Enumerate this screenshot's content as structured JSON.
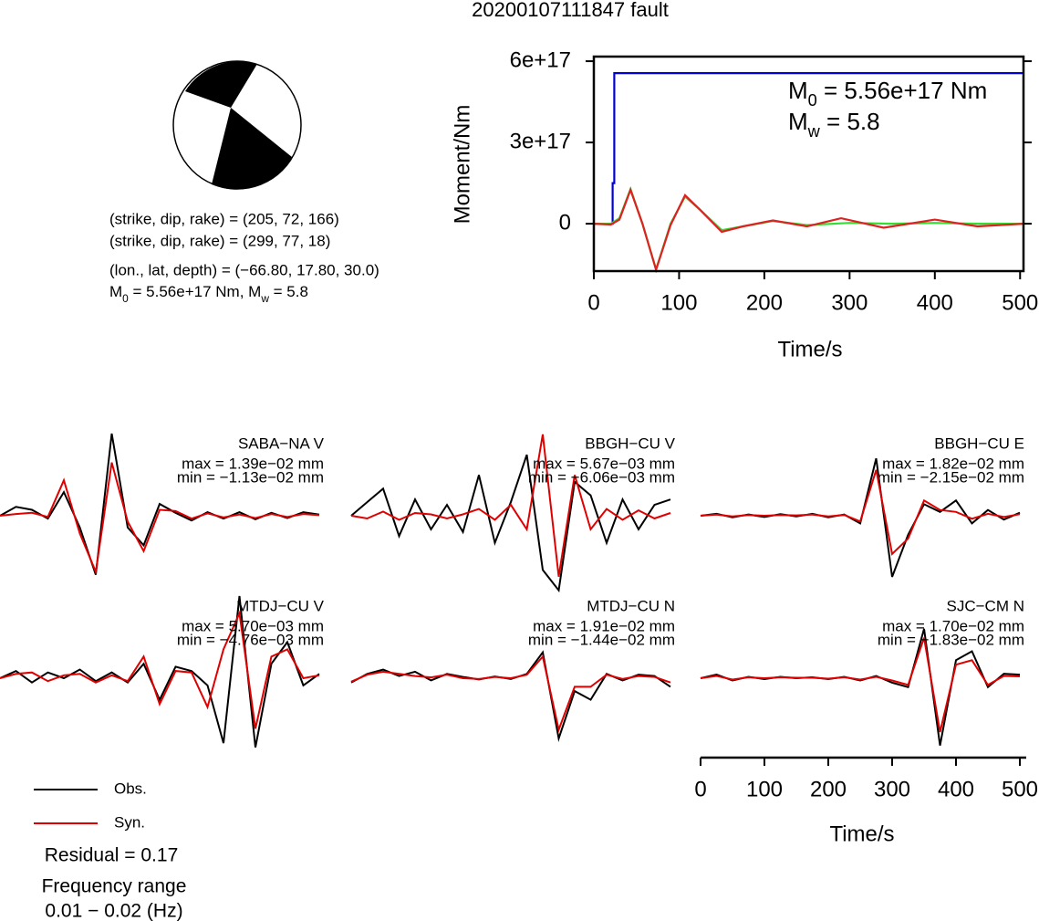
{
  "title": "20200107111847 fault",
  "mechanism": {
    "lines": [
      "(strike, dip, rake) = (205, 72, 166)",
      "(strike, dip, rake) = (299, 77, 18)",
      "(lon., lat, depth) = (−66.80, 17.80, 30.0)"
    ],
    "moment": [
      {
        "t": "M"
      },
      {
        "s": "0"
      },
      {
        "t": " = 5.56e+17 Nm, M"
      },
      {
        "s": "w"
      },
      {
        "t": " = 5.8"
      }
    ]
  },
  "residual": "Residual = 0.17",
  "frequency_range": [
    "Frequency range",
    "0.01 − 0.02 (Hz)"
  ],
  "chart_data": [
    {
      "type": "line",
      "xlabel": "Time/s",
      "ylabel": "Moment/Nm",
      "xlim": [
        0,
        504
      ],
      "ylim": [
        -1.75e+17,
        6.17e+17
      ],
      "xticks": [
        0,
        100,
        200,
        300,
        400,
        500
      ],
      "yticks": [
        {
          "value": 0,
          "label": "0"
        },
        {
          "value": 3e+17,
          "label": "3e+17"
        },
        {
          "value": 6e+17,
          "label": "6e+17"
        }
      ],
      "annotations": [
        [
          {
            "t": "M"
          },
          {
            "s": "0"
          },
          {
            "t": " = 5.56e+17 Nm"
          }
        ],
        [
          {
            "t": "M"
          },
          {
            "s": "w"
          },
          {
            "t": " = 5.8"
          }
        ]
      ],
      "series": [
        {
          "color": "#0000dd",
          "x": [
            0,
            22,
            22,
            24,
            24,
            504
          ],
          "values": [
            0,
            0,
            1.5e+17,
            1.5e+17,
            5.56e+17,
            5.56e+17
          ]
        },
        {
          "color": "#33dd33",
          "x": [
            0,
            20,
            30,
            43,
            57,
            73,
            90,
            107,
            125,
            150,
            175,
            210,
            250,
            300,
            350,
            400,
            450,
            504
          ],
          "values": [
            0,
            0,
            2e+16,
            1.28e+17,
            0,
            -1.69e+17,
            0,
            1e+17,
            5e+16,
            -2.4e+16,
            -1e+16,
            1e+16,
            -5000000000000000.0,
            3000000000000000.0,
            0,
            3000000000000000.0,
            0,
            0
          ]
        },
        {
          "color": "#dd2222",
          "x": [
            0,
            20,
            30,
            43,
            57,
            73,
            90,
            107,
            125,
            150,
            175,
            210,
            250,
            290,
            340,
            400,
            450,
            504
          ],
          "values": [
            0,
            -3000000000000000.0,
            1.5e+16,
            1.25e+17,
            0,
            -1.7e+17,
            -5000000000000000.0,
            1.05e+17,
            5e+16,
            -3e+16,
            -1e+16,
            1.2e+16,
            -1e+16,
            2e+16,
            -1.5e+16,
            1.5e+16,
            -1e+16,
            0
          ]
        }
      ]
    },
    {
      "type": "waveform",
      "xlabel": "Time/s",
      "xlim": [
        0,
        510
      ],
      "xticks": [
        0,
        100,
        200,
        300,
        400,
        500
      ],
      "x": [
        0,
        25,
        50,
        75,
        100,
        125,
        150,
        175,
        200,
        225,
        250,
        275,
        300,
        325,
        350,
        375,
        400,
        425,
        450,
        475,
        500
      ],
      "legend": [
        {
          "name": "Obs.",
          "color": "#000000"
        },
        {
          "name": "Syn.",
          "color": "#e00000"
        }
      ],
      "panels": [
        {
          "name": "SABA−NA V",
          "max_label": "max = 1.39e−02 mm",
          "min_label": "min = −1.13e−02 mm",
          "ylim": [
            -0.0139,
            0.0139
          ],
          "traces": [
            [
              0,
              0.0015,
              0.001,
              -0.0005,
              0.004,
              -0.002,
              -0.01,
              0.0139,
              -0.002,
              -0.005,
              0.002,
              0.0005,
              -0.0008,
              0.0006,
              -0.0005,
              0.0006,
              -0.0006,
              0.0005,
              -0.0004,
              0.0006,
              0.0002
            ],
            [
              0,
              0.0003,
              0.0005,
              -0.0002,
              0.006,
              -0.003,
              -0.0095,
              0.009,
              -0.001,
              -0.006,
              0.001,
              0.0008,
              -0.0005,
              0.0004,
              -0.0003,
              0.0002,
              -0.0004,
              0.0003,
              -0.0002,
              0.0003,
              0.0001
            ]
          ]
        },
        {
          "name": "BBGH−CU V",
          "max_label": "max = 5.67e−03 mm",
          "min_label": "min = −6.06e−03 mm",
          "ylim": [
            -0.00606,
            0.00606
          ],
          "traces": [
            [
              0,
              0.001,
              0.002,
              -0.0015,
              0.0012,
              -0.001,
              0.0008,
              -0.0012,
              0.003,
              -0.002,
              0.001,
              0.0045,
              -0.004,
              -0.0055,
              0.0025,
              0.0015,
              -0.002,
              0.0012,
              -0.001,
              0.0008,
              0.0012
            ],
            [
              0,
              -0.0002,
              0.0003,
              -0.0003,
              0.0002,
              0.0001,
              -0.0002,
              0.0001,
              0.0005,
              -0.0003,
              0.0008,
              -0.001,
              0.006,
              -0.0045,
              0.003,
              -0.001,
              0.0005,
              -0.0003,
              0.0004,
              -0.0002,
              0.0002
            ]
          ]
        },
        {
          "name": "BBGH−CU E",
          "max_label": "max = 1.82e−02 mm",
          "min_label": "min = −2.15e−02 mm",
          "ylim": [
            -0.0215,
            0.0215
          ],
          "traces": [
            [
              0,
              0.0005,
              -0.0004,
              0.0003,
              -0.0003,
              0.0004,
              -0.0002,
              0.0005,
              -0.0004,
              0.0003,
              -0.002,
              0.015,
              -0.016,
              -0.005,
              0.003,
              0.001,
              0.004,
              -0.002,
              0.0015,
              -0.001,
              0.0008
            ],
            [
              0,
              0.0003,
              -0.0002,
              0.0002,
              0,
              0.0002,
              0.0001,
              0.0003,
              -0.0002,
              0.0002,
              -0.0015,
              0.012,
              -0.01,
              -0.006,
              0.004,
              0.0015,
              0.001,
              -0.0008,
              0.0005,
              -0.0003,
              0.0004
            ]
          ]
        },
        {
          "name": "MTDJ−CU V",
          "max_label": "max = 5.70e−03 mm",
          "min_label": "min = −4.76e−03 mm",
          "ylim": [
            -0.0057,
            0.0057
          ],
          "traces": [
            [
              0,
              0.0005,
              -0.0003,
              0.0004,
              0,
              0.0006,
              -0.0002,
              0.0004,
              -0.0003,
              0.001,
              -0.0015,
              0.0008,
              0.0005,
              -0.0005,
              -0.0045,
              0.0057,
              -0.0048,
              0.001,
              0.0025,
              -0.0005,
              0.0003
            ],
            [
              0,
              0.0003,
              0.0004,
              -0.0002,
              0.0002,
              0.0003,
              -0.0003,
              0.0002,
              -0.0002,
              0.0015,
              -0.0018,
              0.0005,
              0.0004,
              -0.002,
              0.002,
              0.0045,
              -0.0035,
              0.0015,
              0.002,
              0,
              0.0002
            ]
          ]
        },
        {
          "name": "MTDJ−CU N",
          "max_label": "max = 1.91e−02 mm",
          "min_label": "min = −1.44e−02 mm",
          "ylim": [
            -0.0191,
            0.0191
          ],
          "traces": [
            [
              -0.001,
              0.001,
              0.002,
              0.0005,
              0.0015,
              -0.0005,
              0.001,
              0.0003,
              -0.0003,
              0.0004,
              -0.0002,
              0.001,
              0.006,
              -0.014,
              -0.003,
              -0.005,
              0.001,
              -0.0005,
              0.0008,
              0.0005,
              -0.002
            ],
            [
              -0.0008,
              0.0008,
              0.0015,
              0.001,
              0.0005,
              0.0002,
              0.0008,
              0,
              -0.0002,
              0.0003,
              0,
              0.0008,
              0.005,
              -0.012,
              -0.002,
              -0.002,
              0.0008,
              -0.0002,
              0.0005,
              0.0003,
              -0.001
            ]
          ]
        },
        {
          "name": "SJC−CM N",
          "max_label": "max = 1.70e−02 mm",
          "min_label": "min = −1.83e−02 mm",
          "ylim": [
            -0.0183,
            0.0183
          ],
          "traces": [
            [
              0,
              0.0008,
              -0.0005,
              0.0003,
              -0.0002,
              0.0003,
              0,
              0.0002,
              -0.0002,
              0.0003,
              -0.0005,
              0.0005,
              -0.001,
              -0.002,
              0.011,
              -0.015,
              0.004,
              0.006,
              -0.002,
              0.001,
              0.0008
            ],
            [
              0,
              0.0005,
              -0.0003,
              0.0002,
              0,
              0.0002,
              0.0001,
              0.0001,
              -0.0001,
              0.0002,
              -0.0003,
              0.0003,
              -0.0005,
              -0.0015,
              0.009,
              -0.012,
              0.003,
              0.004,
              -0.0015,
              0.0005,
              0.0004
            ]
          ]
        }
      ]
    }
  ]
}
